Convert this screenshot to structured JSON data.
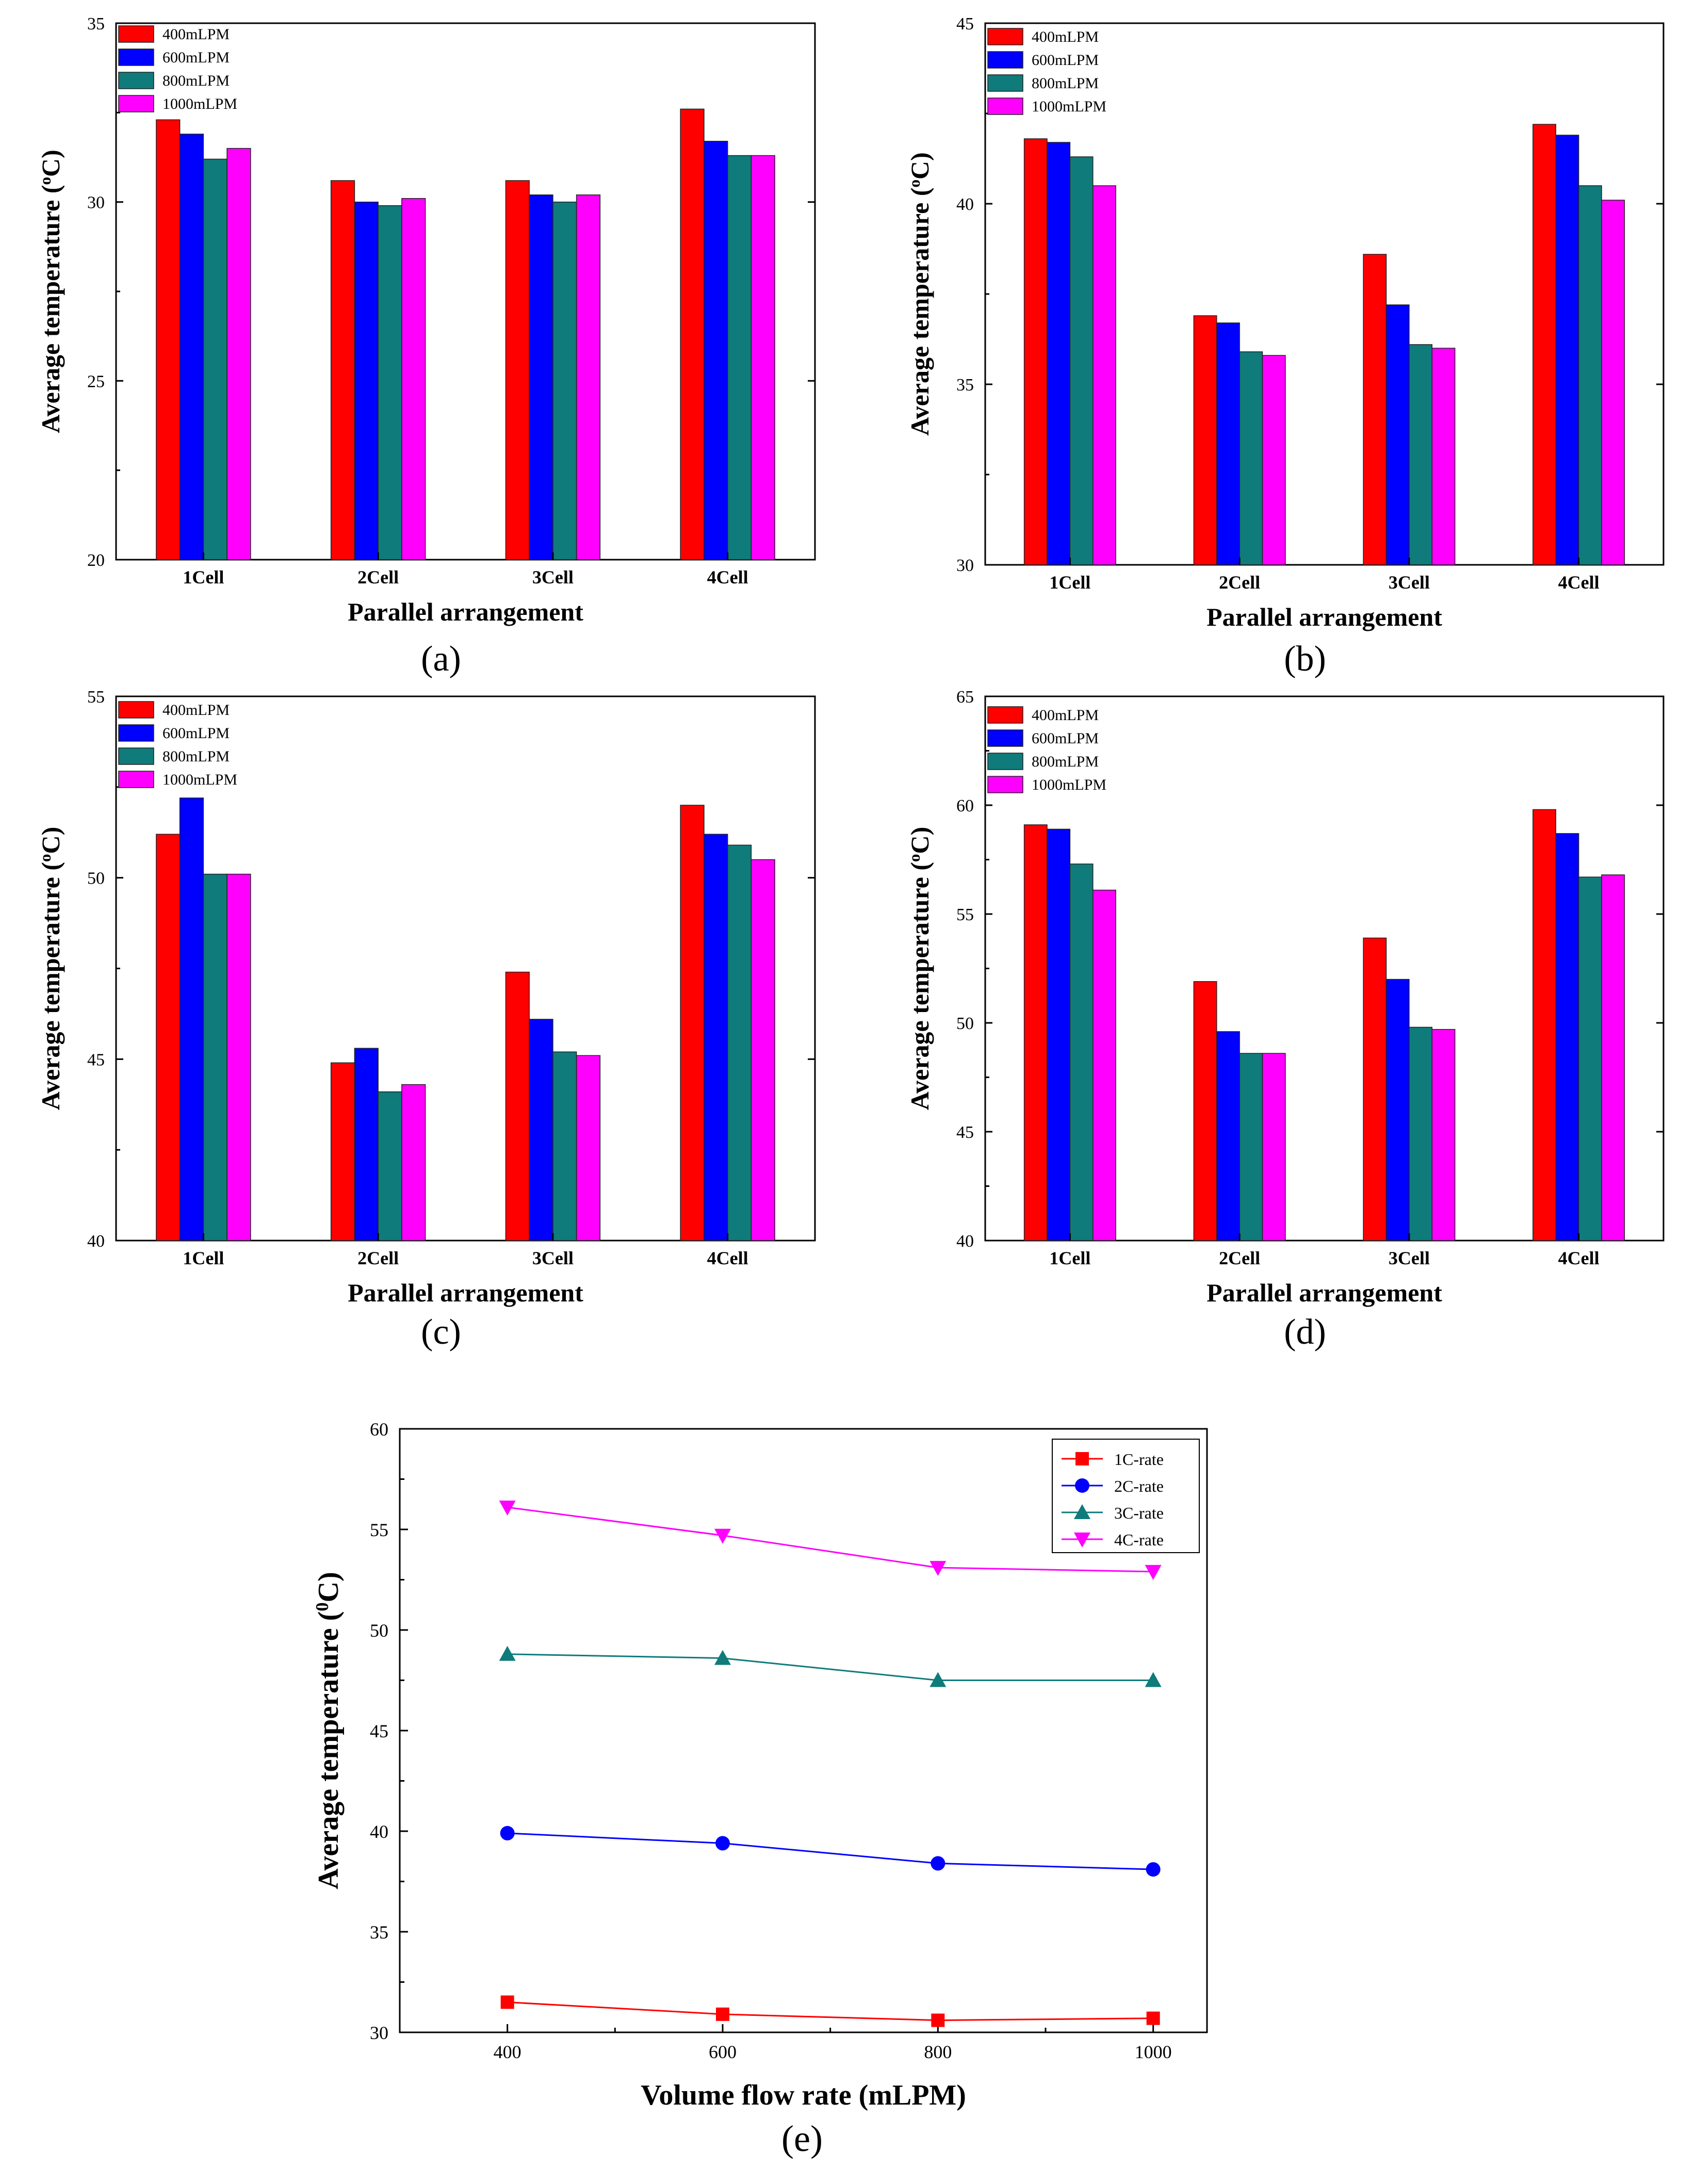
{
  "colors": {
    "s400": "#ff0000",
    "s600": "#0000ff",
    "s800": "#0f7b7b",
    "s1000": "#ff00ff",
    "c1": "#ff0000",
    "c2": "#0000ff",
    "c3": "#0f7b7b",
    "c4": "#ff00ff"
  },
  "chart_data": [
    {
      "type": "bar",
      "caption": "(a)",
      "xlabel": "Parallel arrangement",
      "ylabel": "Average temperature (°C)",
      "ylabel_text": "Average temperature (",
      "ylabel_sup": "o",
      "ylabel_tail": "C)",
      "categories": [
        "1Cell",
        "2Cell",
        "3Cell",
        "4Cell"
      ],
      "ylim": [
        20,
        35
      ],
      "yticks": [
        "20",
        "25",
        "30",
        "35"
      ],
      "series": [
        {
          "name": "400mLPM",
          "values": [
            32.3,
            30.6,
            30.6,
            32.6
          ]
        },
        {
          "name": "600mLPM",
          "values": [
            31.9,
            30.0,
            30.2,
            31.7
          ]
        },
        {
          "name": "800mLPM",
          "values": [
            31.2,
            29.9,
            30.0,
            31.3
          ]
        },
        {
          "name": "1000mLPM",
          "values": [
            31.5,
            30.1,
            30.2,
            31.3
          ]
        }
      ]
    },
    {
      "type": "bar",
      "caption": "(b)",
      "xlabel": "Parallel arrangement",
      "ylabel": "Average temperature (°C)",
      "ylabel_text": "Average temperature (",
      "ylabel_sup": "o",
      "ylabel_tail": "C)",
      "categories": [
        "1Cell",
        "2Cell",
        "3Cell",
        "4Cell"
      ],
      "ylim": [
        30,
        45
      ],
      "yticks": [
        "30",
        "35",
        "40",
        "45"
      ],
      "series": [
        {
          "name": "400mLPM",
          "values": [
            41.8,
            36.9,
            38.6,
            42.2
          ]
        },
        {
          "name": "600mLPM",
          "values": [
            41.7,
            36.7,
            37.2,
            41.9
          ]
        },
        {
          "name": "800mLPM",
          "values": [
            41.3,
            35.9,
            36.1,
            40.5
          ]
        },
        {
          "name": "1000mLPM",
          "values": [
            40.5,
            35.8,
            36.0,
            40.1
          ]
        }
      ]
    },
    {
      "type": "bar",
      "caption": "(c)",
      "xlabel": "Parallel arrangement",
      "ylabel": "Average temperature (°C)",
      "ylabel_text": "Average temperature (",
      "ylabel_sup": "o",
      "ylabel_tail": "C)",
      "categories": [
        "1Cell",
        "2Cell",
        "3Cell",
        "4Cell"
      ],
      "ylim": [
        40,
        55
      ],
      "yticks": [
        "40",
        "45",
        "50",
        "55"
      ],
      "series": [
        {
          "name": "400mLPM",
          "values": [
            51.2,
            44.9,
            47.4,
            52.0
          ]
        },
        {
          "name": "600mLPM",
          "values": [
            52.2,
            45.3,
            46.1,
            51.2
          ]
        },
        {
          "name": "800mLPM",
          "values": [
            50.1,
            44.1,
            45.2,
            50.9
          ]
        },
        {
          "name": "1000mLPM",
          "values": [
            50.1,
            44.3,
            45.1,
            50.5
          ]
        }
      ]
    },
    {
      "type": "bar",
      "caption": "(d)",
      "xlabel": "Parallel arrangement",
      "ylabel": "Average temperature (°C)",
      "ylabel_text": "Average temperature (",
      "ylabel_sup": "o",
      "ylabel_tail": "C)",
      "categories": [
        "1Cell",
        "2Cell",
        "3Cell",
        "4Cell"
      ],
      "ylim": [
        40,
        65
      ],
      "yticks": [
        "40",
        "45",
        "50",
        "55",
        "60",
        "65"
      ],
      "series": [
        {
          "name": "400mLPM",
          "values": [
            59.1,
            51.9,
            53.9,
            59.8
          ]
        },
        {
          "name": "600mLPM",
          "values": [
            58.9,
            49.6,
            52.0,
            58.7
          ]
        },
        {
          "name": "800mLPM",
          "values": [
            57.3,
            48.6,
            49.8,
            56.7
          ]
        },
        {
          "name": "1000mLPM",
          "values": [
            56.1,
            48.6,
            49.7,
            56.8
          ]
        }
      ]
    },
    {
      "type": "line",
      "caption": "(e)",
      "xlabel": "Volume flow rate (mLPM)",
      "ylabel": "Average temperature (°C)",
      "ylabel_text": "Average temperature (",
      "ylabel_sup": "0",
      "ylabel_tail": "C)",
      "x": [
        400,
        600,
        800,
        1000
      ],
      "xlim": [
        300,
        1050
      ],
      "xticks": [
        "400",
        "600",
        "800",
        "1000"
      ],
      "ylim": [
        30,
        60
      ],
      "yticks": [
        "30",
        "35",
        "40",
        "45",
        "50",
        "55",
        "60"
      ],
      "series": [
        {
          "name": "1C-rate",
          "marker": "square",
          "values": [
            31.5,
            30.9,
            30.6,
            30.7
          ]
        },
        {
          "name": "2C-rate",
          "marker": "circle",
          "values": [
            39.9,
            39.4,
            38.4,
            38.1
          ]
        },
        {
          "name": "3C-rate",
          "marker": "triangle-up",
          "values": [
            48.8,
            48.6,
            47.5,
            47.5
          ]
        },
        {
          "name": "4C-rate",
          "marker": "triangle-down",
          "values": [
            56.1,
            54.7,
            53.1,
            52.9
          ]
        }
      ]
    }
  ]
}
